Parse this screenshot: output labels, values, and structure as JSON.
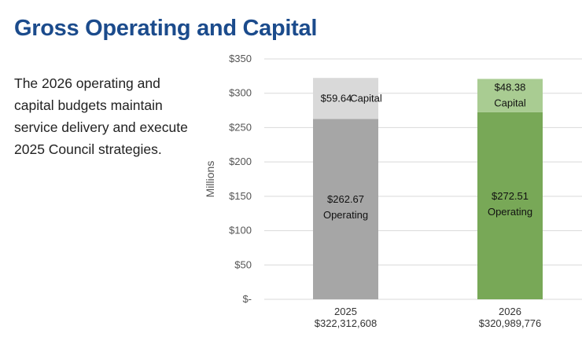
{
  "title": "Gross Operating and Capital",
  "body_text": "The 2026 operating and capital budgets maintain service delivery and execute 2025 Council strategies.",
  "chart_data": {
    "type": "bar",
    "stacked": true,
    "categories": [
      "2025",
      "2026"
    ],
    "category_totals": [
      "$322,312,608",
      "$320,989,776"
    ],
    "series": [
      {
        "name": "Operating",
        "values": [
          262.67,
          272.51
        ],
        "colors": [
          "#a6a6a6",
          "#78a857"
        ],
        "labels": [
          "$262.67",
          "$272.51"
        ]
      },
      {
        "name": "Capital",
        "values": [
          59.64,
          48.38
        ],
        "colors": [
          "#d9d9d9",
          "#a9cc92"
        ],
        "labels": [
          "$59.64",
          "$48.38"
        ]
      }
    ],
    "ylabel": "Millions",
    "ylim": [
      0,
      350
    ],
    "yticks": [
      0,
      50,
      100,
      150,
      200,
      250,
      300,
      350
    ],
    "ytick_labels": [
      "$-",
      "$50",
      "$100",
      "$150",
      "$200",
      "$250",
      "$300",
      "$350"
    ],
    "grid": true
  }
}
